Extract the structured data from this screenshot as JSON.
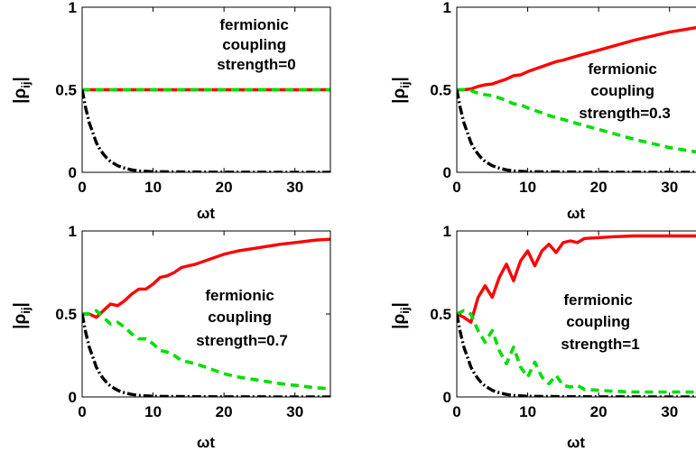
{
  "chart_data": [
    {
      "type": "line",
      "annotation": [
        "fermionic",
        "coupling",
        "strength=0"
      ],
      "xlabel": "ωt",
      "ylabel": [
        "|ρ",
        "ij",
        "|"
      ],
      "xlim": [
        0,
        35
      ],
      "ylim": [
        0,
        1
      ],
      "xticks": [
        0,
        10,
        20,
        30
      ],
      "yticks": [
        0,
        0.5,
        1
      ],
      "series": [
        {
          "style": "solid",
          "color": "#ff0000",
          "x": [
            0,
            5,
            10,
            15,
            20,
            25,
            30,
            35
          ],
          "y": [
            0.5,
            0.5,
            0.5,
            0.5,
            0.5,
            0.5,
            0.5,
            0.5
          ]
        },
        {
          "style": "dashed",
          "color": "#00dd00",
          "x": [
            0,
            5,
            10,
            15,
            20,
            25,
            30,
            35
          ],
          "y": [
            0.5,
            0.5,
            0.5,
            0.5,
            0.5,
            0.5,
            0.5,
            0.5
          ]
        },
        {
          "style": "dashdot",
          "color": "#000000",
          "x": [
            0,
            0.5,
            1,
            1.5,
            2,
            2.5,
            3,
            3.5,
            4,
            5,
            6,
            7,
            8,
            10,
            15,
            20,
            35
          ],
          "y": [
            0.5,
            0.39,
            0.3,
            0.24,
            0.18,
            0.14,
            0.11,
            0.085,
            0.066,
            0.04,
            0.025,
            0.015,
            0.009,
            0.004,
            0.002,
            0.001,
            0
          ]
        }
      ]
    },
    {
      "type": "line",
      "annotation": [
        "fermionic",
        "coupling",
        "strength=0.3"
      ],
      "xlabel": "ωt",
      "ylabel": [
        "|ρ",
        "ij",
        "|"
      ],
      "xlim": [
        0,
        35
      ],
      "ylim": [
        0,
        1
      ],
      "xticks": [
        0,
        10,
        20,
        30
      ],
      "yticks": [
        0,
        0.5,
        1
      ],
      "series": [
        {
          "style": "solid",
          "color": "#ff0000",
          "x": [
            0,
            1,
            2,
            3,
            4,
            5,
            6,
            7,
            8,
            9,
            10,
            11,
            12,
            13,
            14,
            15,
            17,
            20,
            25,
            30,
            35
          ],
          "y": [
            0.5,
            0.5,
            0.505,
            0.52,
            0.53,
            0.535,
            0.55,
            0.565,
            0.585,
            0.59,
            0.61,
            0.625,
            0.64,
            0.655,
            0.67,
            0.68,
            0.705,
            0.74,
            0.8,
            0.85,
            0.885
          ]
        },
        {
          "style": "dashed",
          "color": "#00dd00",
          "x": [
            0,
            1,
            2,
            3,
            4,
            5,
            6,
            7,
            8,
            9,
            10,
            11,
            12,
            13,
            14,
            15,
            17,
            20,
            25,
            30,
            35
          ],
          "y": [
            0.5,
            0.5,
            0.495,
            0.48,
            0.47,
            0.465,
            0.45,
            0.435,
            0.415,
            0.41,
            0.39,
            0.375,
            0.36,
            0.345,
            0.33,
            0.32,
            0.295,
            0.26,
            0.2,
            0.15,
            0.115
          ]
        },
        {
          "style": "dashdot",
          "color": "#000000",
          "x": [
            0,
            0.5,
            1,
            1.5,
            2,
            2.5,
            3,
            3.5,
            4,
            5,
            6,
            7,
            8,
            10,
            15,
            20,
            35
          ],
          "y": [
            0.5,
            0.39,
            0.3,
            0.24,
            0.18,
            0.14,
            0.11,
            0.085,
            0.066,
            0.04,
            0.025,
            0.015,
            0.009,
            0.004,
            0.002,
            0.001,
            0
          ]
        }
      ]
    },
    {
      "type": "line",
      "annotation": [
        "fermionic",
        "coupling",
        "strength=0.7"
      ],
      "xlabel": "ωt",
      "ylabel": [
        "|ρ",
        "ij",
        "|"
      ],
      "xlim": [
        0,
        35
      ],
      "ylim": [
        0,
        1
      ],
      "xticks": [
        0,
        10,
        20,
        30
      ],
      "yticks": [
        0,
        0.5,
        1
      ],
      "series": [
        {
          "style": "solid",
          "color": "#ff0000",
          "x": [
            0,
            1,
            2,
            3,
            4,
            5,
            6,
            7,
            8,
            9,
            10,
            11,
            12,
            13,
            14,
            15,
            16,
            18,
            20,
            22,
            25,
            28,
            30,
            33,
            35
          ],
          "y": [
            0.5,
            0.5,
            0.48,
            0.52,
            0.56,
            0.55,
            0.58,
            0.62,
            0.65,
            0.65,
            0.68,
            0.72,
            0.73,
            0.75,
            0.78,
            0.79,
            0.8,
            0.83,
            0.86,
            0.88,
            0.9,
            0.92,
            0.93,
            0.945,
            0.95
          ]
        },
        {
          "style": "dashed",
          "color": "#00dd00",
          "x": [
            0,
            1,
            2,
            3,
            4,
            5,
            6,
            7,
            8,
            9,
            10,
            11,
            12,
            13,
            14,
            15,
            16,
            18,
            20,
            22,
            25,
            28,
            30,
            33,
            35
          ],
          "y": [
            0.5,
            0.5,
            0.52,
            0.48,
            0.44,
            0.45,
            0.42,
            0.38,
            0.35,
            0.35,
            0.32,
            0.28,
            0.27,
            0.25,
            0.22,
            0.21,
            0.2,
            0.17,
            0.14,
            0.12,
            0.1,
            0.08,
            0.07,
            0.055,
            0.05
          ]
        },
        {
          "style": "dashdot",
          "color": "#000000",
          "x": [
            0,
            0.5,
            1,
            1.5,
            2,
            2.5,
            3,
            3.5,
            4,
            5,
            6,
            7,
            8,
            10,
            15,
            20,
            35
          ],
          "y": [
            0.5,
            0.39,
            0.3,
            0.24,
            0.18,
            0.14,
            0.11,
            0.085,
            0.066,
            0.04,
            0.025,
            0.015,
            0.009,
            0.004,
            0.002,
            0.001,
            0
          ]
        }
      ]
    },
    {
      "type": "line",
      "annotation": [
        "fermionic",
        "coupling",
        "strength=1"
      ],
      "xlabel": "ωt",
      "ylabel": [
        "|ρ",
        "ij",
        "|"
      ],
      "xlim": [
        0,
        35
      ],
      "ylim": [
        0,
        1
      ],
      "xticks": [
        0,
        10,
        20,
        30
      ],
      "yticks": [
        0,
        0.5,
        1
      ],
      "series": [
        {
          "style": "solid",
          "color": "#ff0000",
          "x": [
            0,
            1,
            2,
            3,
            4,
            5,
            6,
            7,
            8,
            9,
            10,
            11,
            12,
            13,
            14,
            15,
            16,
            17,
            18,
            20,
            22,
            25,
            30,
            35
          ],
          "y": [
            0.5,
            0.48,
            0.45,
            0.6,
            0.67,
            0.6,
            0.72,
            0.8,
            0.7,
            0.82,
            0.88,
            0.79,
            0.88,
            0.92,
            0.87,
            0.93,
            0.94,
            0.93,
            0.955,
            0.96,
            0.965,
            0.97,
            0.97,
            0.97
          ]
        },
        {
          "style": "dashed",
          "color": "#00dd00",
          "x": [
            0,
            1,
            2,
            3,
            4,
            5,
            6,
            7,
            8,
            9,
            10,
            11,
            12,
            13,
            14,
            15,
            16,
            17,
            18,
            20,
            22,
            25,
            30,
            35
          ],
          "y": [
            0.5,
            0.52,
            0.5,
            0.4,
            0.33,
            0.4,
            0.28,
            0.2,
            0.3,
            0.18,
            0.12,
            0.21,
            0.12,
            0.08,
            0.13,
            0.07,
            0.06,
            0.07,
            0.045,
            0.04,
            0.035,
            0.03,
            0.03,
            0.03
          ]
        },
        {
          "style": "dashdot",
          "color": "#000000",
          "x": [
            0,
            0.5,
            1,
            1.5,
            2,
            2.5,
            3,
            3.5,
            4,
            5,
            6,
            7,
            8,
            10,
            15,
            20,
            35
          ],
          "y": [
            0.5,
            0.39,
            0.3,
            0.24,
            0.18,
            0.14,
            0.11,
            0.085,
            0.066,
            0.04,
            0.025,
            0.015,
            0.009,
            0.004,
            0.002,
            0.001,
            0
          ]
        }
      ]
    }
  ]
}
